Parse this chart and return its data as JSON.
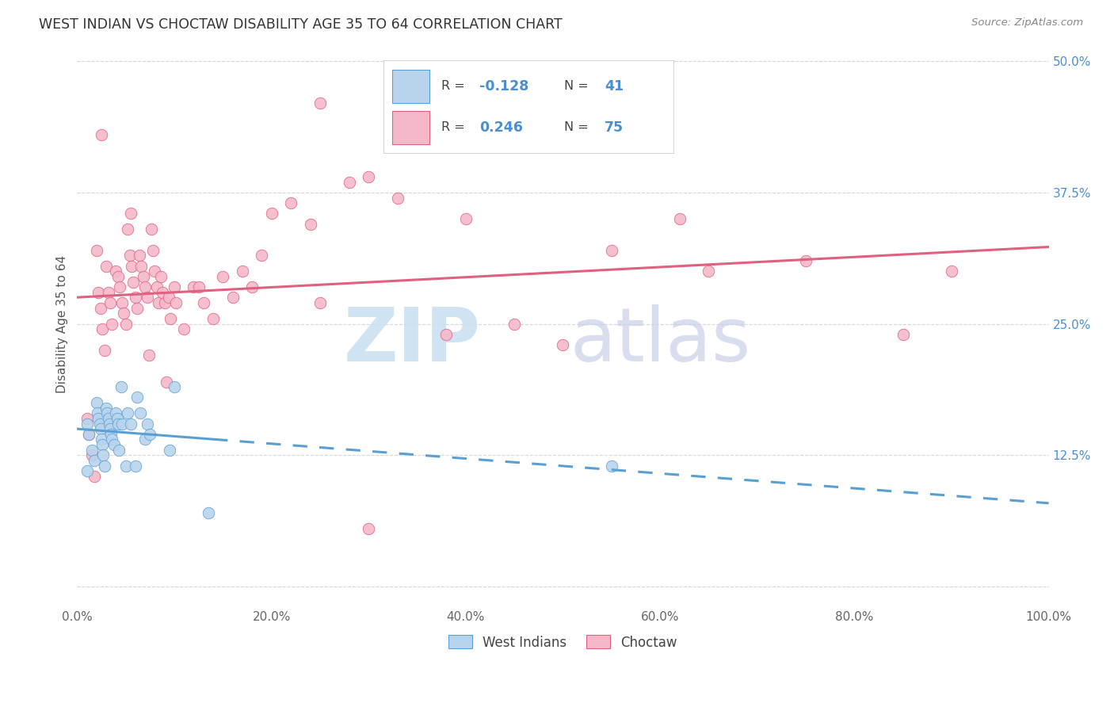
{
  "title": "WEST INDIAN VS CHOCTAW DISABILITY AGE 35 TO 64 CORRELATION CHART",
  "source": "Source: ZipAtlas.com",
  "ylabel": "Disability Age 35 to 64",
  "xlim": [
    0.0,
    100.0
  ],
  "ylim": [
    -2.0,
    52.0
  ],
  "yticks": [
    0.0,
    12.5,
    25.0,
    37.5,
    50.0
  ],
  "ytick_labels": [
    "",
    "12.5%",
    "25.0%",
    "37.5%",
    "50.0%"
  ],
  "xticks": [
    0.0,
    20.0,
    40.0,
    60.0,
    80.0,
    100.0
  ],
  "xtick_labels": [
    "0.0%",
    "20.0%",
    "40.0%",
    "60.0%",
    "80.0%",
    "100.0%"
  ],
  "legend_r_blue": "-0.128",
  "legend_n_blue": "41",
  "legend_r_pink": "0.246",
  "legend_n_pink": "75",
  "blue_fill": "#b8d4ed",
  "blue_edge": "#5a9fd4",
  "pink_fill": "#f5b8c8",
  "pink_edge": "#e06080",
  "blue_line": "#5a9fd4",
  "pink_line": "#e06080",
  "watermark_zip_color": "#c8dff0",
  "watermark_atlas_color": "#c8d0e8",
  "blue_x": [
    1.0,
    1.2,
    1.5,
    1.8,
    2.0,
    2.1,
    2.2,
    2.3,
    2.4,
    2.5,
    2.6,
    2.7,
    2.8,
    3.0,
    3.1,
    3.2,
    3.3,
    3.4,
    3.5,
    3.6,
    3.8,
    4.0,
    4.1,
    4.2,
    4.3,
    4.5,
    4.6,
    5.0,
    5.2,
    5.5,
    6.0,
    6.2,
    6.5,
    7.0,
    7.2,
    7.5,
    9.5,
    10.0,
    13.5,
    55.0,
    1.0
  ],
  "blue_y": [
    15.5,
    14.5,
    13.0,
    12.0,
    17.5,
    16.5,
    16.0,
    15.5,
    15.0,
    14.0,
    13.5,
    12.5,
    11.5,
    17.0,
    16.5,
    16.0,
    15.5,
    15.0,
    14.5,
    14.0,
    13.5,
    16.5,
    16.0,
    15.5,
    13.0,
    19.0,
    15.5,
    11.5,
    16.5,
    15.5,
    11.5,
    18.0,
    16.5,
    14.0,
    15.5,
    14.5,
    13.0,
    19.0,
    7.0,
    11.5,
    11.0
  ],
  "pink_x": [
    1.0,
    1.2,
    1.5,
    1.8,
    2.0,
    2.2,
    2.4,
    2.6,
    2.8,
    3.0,
    3.2,
    3.4,
    3.6,
    4.0,
    4.2,
    4.4,
    4.6,
    4.8,
    5.0,
    5.2,
    5.4,
    5.6,
    5.8,
    6.0,
    6.2,
    6.4,
    6.6,
    6.8,
    7.0,
    7.2,
    7.4,
    7.6,
    7.8,
    8.0,
    8.2,
    8.4,
    8.6,
    8.8,
    9.0,
    9.2,
    9.4,
    9.6,
    10.0,
    10.2,
    11.0,
    12.0,
    12.5,
    13.0,
    14.0,
    15.0,
    16.0,
    17.0,
    18.0,
    19.0,
    20.0,
    22.0,
    24.0,
    25.0,
    28.0,
    30.0,
    33.0,
    38.0,
    40.0,
    45.0,
    50.0,
    55.0,
    62.0,
    65.0,
    75.0,
    85.0,
    90.0,
    30.0,
    2.5,
    5.5,
    25.0
  ],
  "pink_y": [
    16.0,
    14.5,
    12.5,
    10.5,
    32.0,
    28.0,
    26.5,
    24.5,
    22.5,
    30.5,
    28.0,
    27.0,
    25.0,
    30.0,
    29.5,
    28.5,
    27.0,
    26.0,
    25.0,
    34.0,
    31.5,
    30.5,
    29.0,
    27.5,
    26.5,
    31.5,
    30.5,
    29.5,
    28.5,
    27.5,
    22.0,
    34.0,
    32.0,
    30.0,
    28.5,
    27.0,
    29.5,
    28.0,
    27.0,
    19.5,
    27.5,
    25.5,
    28.5,
    27.0,
    24.5,
    28.5,
    28.5,
    27.0,
    25.5,
    29.5,
    27.5,
    30.0,
    28.5,
    31.5,
    35.5,
    36.5,
    34.5,
    46.0,
    38.5,
    39.0,
    37.0,
    24.0,
    35.0,
    25.0,
    23.0,
    32.0,
    35.0,
    30.0,
    31.0,
    24.0,
    30.0,
    5.5,
    43.0,
    35.5,
    27.0
  ]
}
